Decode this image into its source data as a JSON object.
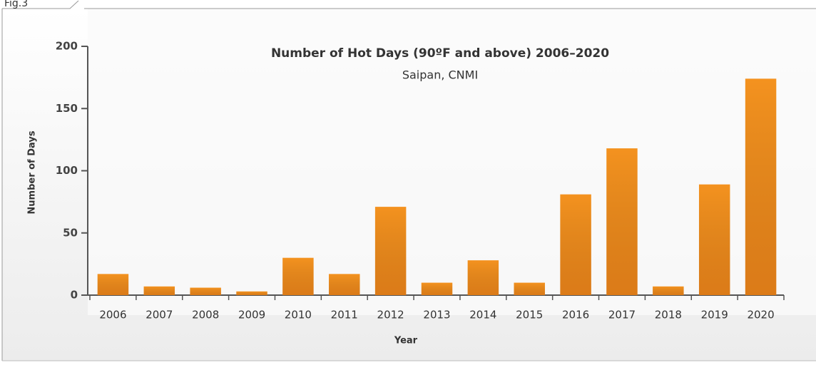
{
  "figure_label": "Fig.3",
  "chart_data": {
    "type": "bar",
    "title": "Number of Hot Days (90ºF and above) 2006–2020",
    "subtitle": "Saipan, CNMI",
    "x_label": "Year",
    "y_label": "Number of Days",
    "categories": [
      "2006",
      "2007",
      "2008",
      "2009",
      "2010",
      "2011",
      "2012",
      "2013",
      "2014",
      "2015",
      "2016",
      "2017",
      "2018",
      "2019",
      "2020"
    ],
    "values": [
      17,
      7,
      6,
      3,
      30,
      17,
      71,
      10,
      28,
      10,
      81,
      118,
      7,
      89,
      174
    ],
    "color": "#f4921f",
    "ylim": [
      0,
      200
    ],
    "yticks": [
      0,
      50,
      100,
      150,
      200
    ],
    "grid": false
  }
}
